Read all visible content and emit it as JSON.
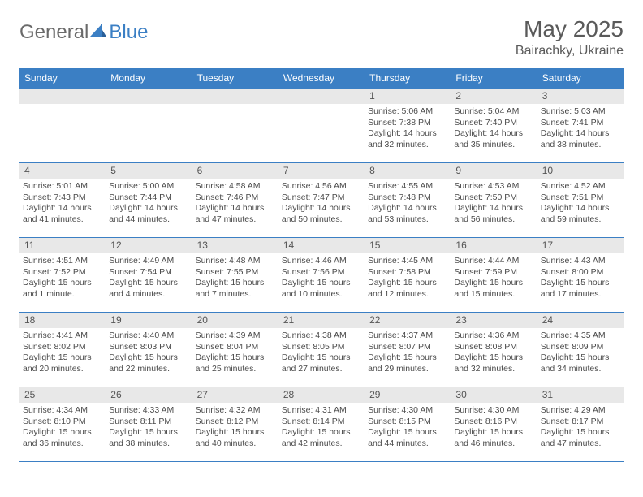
{
  "brand": {
    "part1": "General",
    "part2": "Blue"
  },
  "title": "May 2025",
  "location": "Bairachky, Ukraine",
  "colors": {
    "header_bg": "#3b7fc4",
    "header_fg": "#ffffff",
    "daynum_bg": "#e8e8e8",
    "border": "#3b7fc4",
    "text": "#4a4a4a",
    "brand_gray": "#6a6a6a",
    "brand_blue": "#3b7fc4"
  },
  "dow": [
    "Sunday",
    "Monday",
    "Tuesday",
    "Wednesday",
    "Thursday",
    "Friday",
    "Saturday"
  ],
  "weeks": [
    [
      null,
      null,
      null,
      null,
      {
        "n": "1",
        "sr": "5:06 AM",
        "ss": "7:38 PM",
        "dl": "14 hours and 32 minutes."
      },
      {
        "n": "2",
        "sr": "5:04 AM",
        "ss": "7:40 PM",
        "dl": "14 hours and 35 minutes."
      },
      {
        "n": "3",
        "sr": "5:03 AM",
        "ss": "7:41 PM",
        "dl": "14 hours and 38 minutes."
      }
    ],
    [
      {
        "n": "4",
        "sr": "5:01 AM",
        "ss": "7:43 PM",
        "dl": "14 hours and 41 minutes."
      },
      {
        "n": "5",
        "sr": "5:00 AM",
        "ss": "7:44 PM",
        "dl": "14 hours and 44 minutes."
      },
      {
        "n": "6",
        "sr": "4:58 AM",
        "ss": "7:46 PM",
        "dl": "14 hours and 47 minutes."
      },
      {
        "n": "7",
        "sr": "4:56 AM",
        "ss": "7:47 PM",
        "dl": "14 hours and 50 minutes."
      },
      {
        "n": "8",
        "sr": "4:55 AM",
        "ss": "7:48 PM",
        "dl": "14 hours and 53 minutes."
      },
      {
        "n": "9",
        "sr": "4:53 AM",
        "ss": "7:50 PM",
        "dl": "14 hours and 56 minutes."
      },
      {
        "n": "10",
        "sr": "4:52 AM",
        "ss": "7:51 PM",
        "dl": "14 hours and 59 minutes."
      }
    ],
    [
      {
        "n": "11",
        "sr": "4:51 AM",
        "ss": "7:52 PM",
        "dl": "15 hours and 1 minute."
      },
      {
        "n": "12",
        "sr": "4:49 AM",
        "ss": "7:54 PM",
        "dl": "15 hours and 4 minutes."
      },
      {
        "n": "13",
        "sr": "4:48 AM",
        "ss": "7:55 PM",
        "dl": "15 hours and 7 minutes."
      },
      {
        "n": "14",
        "sr": "4:46 AM",
        "ss": "7:56 PM",
        "dl": "15 hours and 10 minutes."
      },
      {
        "n": "15",
        "sr": "4:45 AM",
        "ss": "7:58 PM",
        "dl": "15 hours and 12 minutes."
      },
      {
        "n": "16",
        "sr": "4:44 AM",
        "ss": "7:59 PM",
        "dl": "15 hours and 15 minutes."
      },
      {
        "n": "17",
        "sr": "4:43 AM",
        "ss": "8:00 PM",
        "dl": "15 hours and 17 minutes."
      }
    ],
    [
      {
        "n": "18",
        "sr": "4:41 AM",
        "ss": "8:02 PM",
        "dl": "15 hours and 20 minutes."
      },
      {
        "n": "19",
        "sr": "4:40 AM",
        "ss": "8:03 PM",
        "dl": "15 hours and 22 minutes."
      },
      {
        "n": "20",
        "sr": "4:39 AM",
        "ss": "8:04 PM",
        "dl": "15 hours and 25 minutes."
      },
      {
        "n": "21",
        "sr": "4:38 AM",
        "ss": "8:05 PM",
        "dl": "15 hours and 27 minutes."
      },
      {
        "n": "22",
        "sr": "4:37 AM",
        "ss": "8:07 PM",
        "dl": "15 hours and 29 minutes."
      },
      {
        "n": "23",
        "sr": "4:36 AM",
        "ss": "8:08 PM",
        "dl": "15 hours and 32 minutes."
      },
      {
        "n": "24",
        "sr": "4:35 AM",
        "ss": "8:09 PM",
        "dl": "15 hours and 34 minutes."
      }
    ],
    [
      {
        "n": "25",
        "sr": "4:34 AM",
        "ss": "8:10 PM",
        "dl": "15 hours and 36 minutes."
      },
      {
        "n": "26",
        "sr": "4:33 AM",
        "ss": "8:11 PM",
        "dl": "15 hours and 38 minutes."
      },
      {
        "n": "27",
        "sr": "4:32 AM",
        "ss": "8:12 PM",
        "dl": "15 hours and 40 minutes."
      },
      {
        "n": "28",
        "sr": "4:31 AM",
        "ss": "8:14 PM",
        "dl": "15 hours and 42 minutes."
      },
      {
        "n": "29",
        "sr": "4:30 AM",
        "ss": "8:15 PM",
        "dl": "15 hours and 44 minutes."
      },
      {
        "n": "30",
        "sr": "4:30 AM",
        "ss": "8:16 PM",
        "dl": "15 hours and 46 minutes."
      },
      {
        "n": "31",
        "sr": "4:29 AM",
        "ss": "8:17 PM",
        "dl": "15 hours and 47 minutes."
      }
    ]
  ],
  "labels": {
    "sunrise": "Sunrise: ",
    "sunset": "Sunset: ",
    "daylight": "Daylight: "
  }
}
